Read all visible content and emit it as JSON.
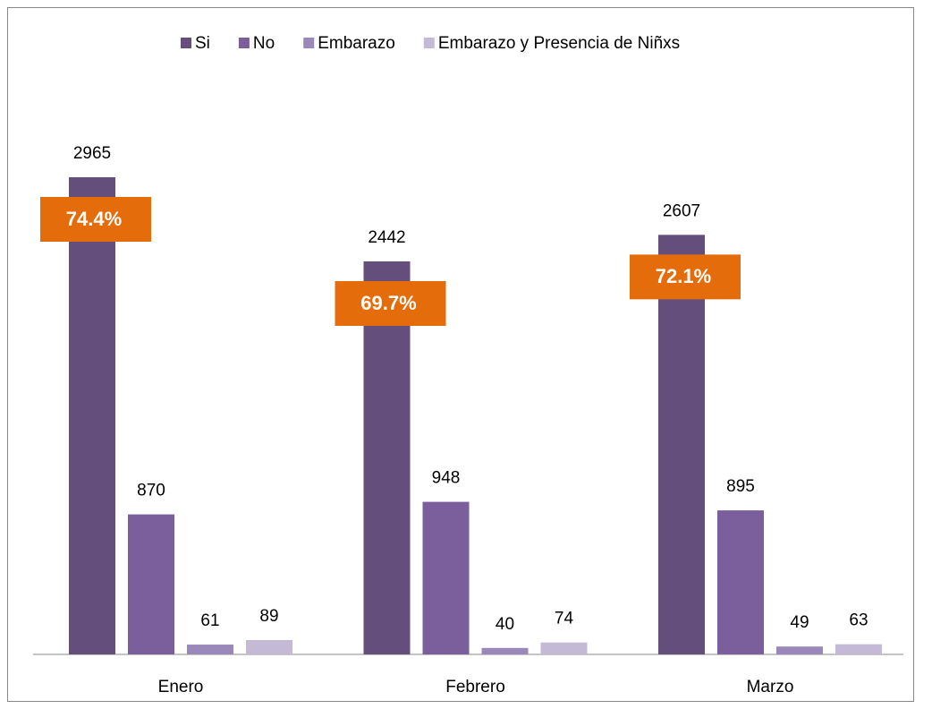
{
  "chart_data": {
    "type": "bar",
    "categories": [
      "Enero",
      "Febrero",
      "Marzo"
    ],
    "series": [
      {
        "name": "Si",
        "color": "#634e7c",
        "values": [
          2965,
          2442,
          2607
        ]
      },
      {
        "name": "No",
        "color": "#7b5f9c",
        "values": [
          870,
          948,
          895
        ]
      },
      {
        "name": "Embarazo",
        "color": "#9b88bb",
        "values": [
          61,
          40,
          49
        ]
      },
      {
        "name": "Embarazo y Presencia de Niñxs",
        "color": "#c5bad5",
        "values": [
          89,
          74,
          63
        ]
      }
    ],
    "annotations": [
      "74.4%",
      "69.7%",
      "72.1%"
    ],
    "annotation_color": "#e46c0a",
    "legend": "top"
  }
}
